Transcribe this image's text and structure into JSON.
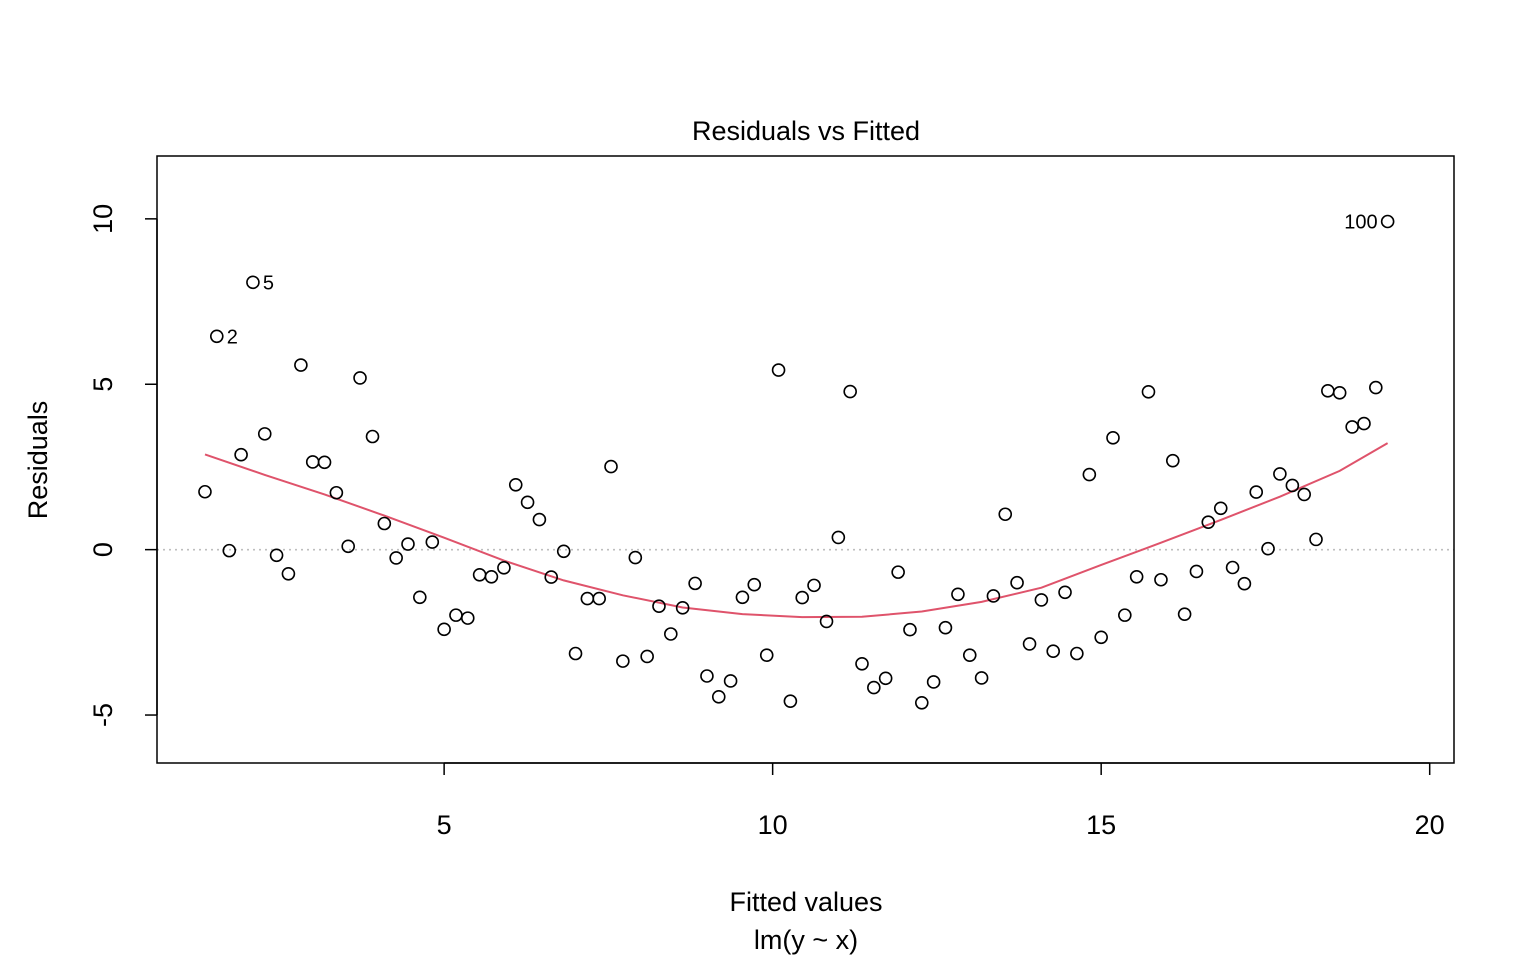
{
  "chart_data": {
    "type": "scatter",
    "title": "Residuals vs Fitted",
    "xlabel": "Fitted values",
    "sublabel": "lm(y ~ x)",
    "ylabel": "Residuals",
    "xlim": [
      0.63,
      20.37
    ],
    "ylim": [
      -6.45,
      11.9
    ],
    "xticks": [
      5,
      10,
      15,
      20
    ],
    "xtick_labels": [
      "5",
      "10",
      "15",
      "20"
    ],
    "yticks": [
      -5,
      0,
      5,
      10
    ],
    "ytick_labels": [
      "-5",
      "0",
      "5",
      "10"
    ],
    "reference_line_y": 0,
    "grid": false,
    "colors": {
      "points": "#000000",
      "smoother": "#DF536B",
      "reference": "#BEBEBE"
    },
    "points": [
      {
        "x": 1.36,
        "y": 1.75
      },
      {
        "x": 1.54,
        "y": 6.45,
        "label": "2"
      },
      {
        "x": 1.73,
        "y": -0.03
      },
      {
        "x": 1.91,
        "y": 2.87
      },
      {
        "x": 2.09,
        "y": 8.08,
        "label": "5"
      },
      {
        "x": 2.27,
        "y": 3.5
      },
      {
        "x": 2.45,
        "y": -0.17
      },
      {
        "x": 2.63,
        "y": -0.73
      },
      {
        "x": 2.82,
        "y": 5.58
      },
      {
        "x": 3.0,
        "y": 2.65
      },
      {
        "x": 3.18,
        "y": 2.64
      },
      {
        "x": 3.36,
        "y": 1.72
      },
      {
        "x": 3.54,
        "y": 0.1
      },
      {
        "x": 3.72,
        "y": 5.19
      },
      {
        "x": 3.91,
        "y": 3.42
      },
      {
        "x": 4.09,
        "y": 0.79
      },
      {
        "x": 4.27,
        "y": -0.25
      },
      {
        "x": 4.45,
        "y": 0.17
      },
      {
        "x": 4.63,
        "y": -1.44
      },
      {
        "x": 4.82,
        "y": 0.23
      },
      {
        "x": 5.0,
        "y": -2.41
      },
      {
        "x": 5.18,
        "y": -1.98
      },
      {
        "x": 5.36,
        "y": -2.07
      },
      {
        "x": 5.54,
        "y": -0.76
      },
      {
        "x": 5.72,
        "y": -0.82
      },
      {
        "x": 5.91,
        "y": -0.55
      },
      {
        "x": 6.09,
        "y": 1.96
      },
      {
        "x": 6.27,
        "y": 1.43
      },
      {
        "x": 6.45,
        "y": 0.91
      },
      {
        "x": 6.63,
        "y": -0.83
      },
      {
        "x": 6.82,
        "y": -0.05
      },
      {
        "x": 7.0,
        "y": -3.14
      },
      {
        "x": 7.18,
        "y": -1.48
      },
      {
        "x": 7.36,
        "y": -1.48
      },
      {
        "x": 7.54,
        "y": 2.51
      },
      {
        "x": 7.72,
        "y": -3.37
      },
      {
        "x": 7.91,
        "y": -0.24
      },
      {
        "x": 8.09,
        "y": -3.23
      },
      {
        "x": 8.27,
        "y": -1.71
      },
      {
        "x": 8.45,
        "y": -2.55
      },
      {
        "x": 8.63,
        "y": -1.76
      },
      {
        "x": 8.82,
        "y": -1.02
      },
      {
        "x": 9.0,
        "y": -3.82
      },
      {
        "x": 9.18,
        "y": -4.45
      },
      {
        "x": 9.36,
        "y": -3.97
      },
      {
        "x": 9.54,
        "y": -1.44
      },
      {
        "x": 9.72,
        "y": -1.06
      },
      {
        "x": 9.91,
        "y": -3.19
      },
      {
        "x": 10.09,
        "y": 5.43
      },
      {
        "x": 10.27,
        "y": -4.58
      },
      {
        "x": 10.45,
        "y": -1.45
      },
      {
        "x": 10.63,
        "y": -1.08
      },
      {
        "x": 10.82,
        "y": -2.17
      },
      {
        "x": 11.0,
        "y": 0.37
      },
      {
        "x": 11.18,
        "y": 4.78
      },
      {
        "x": 11.36,
        "y": -3.45
      },
      {
        "x": 11.54,
        "y": -4.17
      },
      {
        "x": 11.72,
        "y": -3.89
      },
      {
        "x": 11.91,
        "y": -0.68
      },
      {
        "x": 12.09,
        "y": -2.42
      },
      {
        "x": 12.27,
        "y": -4.63
      },
      {
        "x": 12.45,
        "y": -4.0
      },
      {
        "x": 12.63,
        "y": -2.36
      },
      {
        "x": 12.82,
        "y": -1.35
      },
      {
        "x": 13.0,
        "y": -3.19
      },
      {
        "x": 13.18,
        "y": -3.88
      },
      {
        "x": 13.36,
        "y": -1.4
      },
      {
        "x": 13.54,
        "y": 1.07
      },
      {
        "x": 13.72,
        "y": -1.0
      },
      {
        "x": 13.91,
        "y": -2.85
      },
      {
        "x": 14.09,
        "y": -1.52
      },
      {
        "x": 14.27,
        "y": -3.07
      },
      {
        "x": 14.45,
        "y": -1.29
      },
      {
        "x": 14.63,
        "y": -3.14
      },
      {
        "x": 14.82,
        "y": 2.27
      },
      {
        "x": 15.0,
        "y": -2.65
      },
      {
        "x": 15.18,
        "y": 3.38
      },
      {
        "x": 15.36,
        "y": -1.98
      },
      {
        "x": 15.54,
        "y": -0.82
      },
      {
        "x": 15.72,
        "y": 4.77
      },
      {
        "x": 15.91,
        "y": -0.91
      },
      {
        "x": 16.09,
        "y": 2.69
      },
      {
        "x": 16.27,
        "y": -1.95
      },
      {
        "x": 16.45,
        "y": -0.66
      },
      {
        "x": 16.63,
        "y": 0.83
      },
      {
        "x": 16.82,
        "y": 1.25
      },
      {
        "x": 17.0,
        "y": -0.54
      },
      {
        "x": 17.18,
        "y": -1.03
      },
      {
        "x": 17.36,
        "y": 1.74
      },
      {
        "x": 17.54,
        "y": 0.03
      },
      {
        "x": 17.72,
        "y": 2.29
      },
      {
        "x": 17.91,
        "y": 1.94
      },
      {
        "x": 18.09,
        "y": 1.67
      },
      {
        "x": 18.27,
        "y": 0.31
      },
      {
        "x": 18.45,
        "y": 4.8
      },
      {
        "x": 18.63,
        "y": 4.74
      },
      {
        "x": 18.82,
        "y": 3.71
      },
      {
        "x": 19.0,
        "y": 3.81
      },
      {
        "x": 19.18,
        "y": 4.9
      },
      {
        "x": 19.36,
        "y": 9.92,
        "label": "100"
      }
    ],
    "smoother": [
      {
        "x": 1.36,
        "y": 2.88
      },
      {
        "x": 2.27,
        "y": 2.26
      },
      {
        "x": 3.18,
        "y": 1.67
      },
      {
        "x": 4.09,
        "y": 1.03
      },
      {
        "x": 5.0,
        "y": 0.36
      },
      {
        "x": 5.91,
        "y": -0.33
      },
      {
        "x": 6.82,
        "y": -0.93
      },
      {
        "x": 7.72,
        "y": -1.38
      },
      {
        "x": 8.63,
        "y": -1.75
      },
      {
        "x": 9.54,
        "y": -1.95
      },
      {
        "x": 10.45,
        "y": -2.04
      },
      {
        "x": 11.36,
        "y": -2.03
      },
      {
        "x": 12.27,
        "y": -1.87
      },
      {
        "x": 13.18,
        "y": -1.58
      },
      {
        "x": 14.09,
        "y": -1.15
      },
      {
        "x": 15.0,
        "y": -0.46
      },
      {
        "x": 15.91,
        "y": 0.21
      },
      {
        "x": 16.82,
        "y": 0.9
      },
      {
        "x": 17.72,
        "y": 1.6
      },
      {
        "x": 18.63,
        "y": 2.38
      },
      {
        "x": 19.36,
        "y": 3.22
      }
    ]
  }
}
